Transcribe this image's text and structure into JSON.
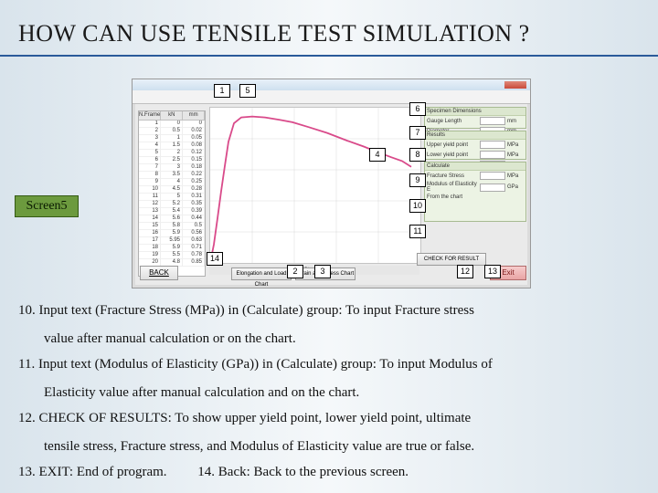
{
  "title": "HOW CAN USE TENSILE TEST SIMULATION ?",
  "screen_label": "Screen5",
  "callouts": {
    "1": "1",
    "2": "2",
    "3": "3",
    "4": "4",
    "5": "5",
    "6": "6",
    "7": "7",
    "8": "8",
    "9": "9",
    "10": "10",
    "11": "11",
    "12": "12",
    "13": "13",
    "14": "14"
  },
  "screenshot": {
    "table": {
      "headers": [
        "N.Frame",
        "kN",
        "mm"
      ],
      "rows": [
        [
          1,
          0,
          0
        ],
        [
          2,
          0.5,
          0.02
        ],
        [
          3,
          1,
          0.05
        ],
        [
          4,
          1.5,
          0.08
        ],
        [
          5,
          2,
          0.12
        ],
        [
          6,
          2.5,
          0.15
        ],
        [
          7,
          3,
          0.18
        ],
        [
          8,
          3.5,
          0.22
        ],
        [
          9,
          4,
          0.25
        ],
        [
          10,
          4.5,
          0.28
        ],
        [
          11,
          5,
          0.31
        ],
        [
          12,
          5.2,
          0.35
        ],
        [
          13,
          5.4,
          0.39
        ],
        [
          14,
          5.6,
          0.44
        ],
        [
          15,
          5.8,
          0.5
        ],
        [
          16,
          5.9,
          0.56
        ],
        [
          17,
          5.95,
          0.63
        ],
        [
          18,
          5.9,
          0.71
        ],
        [
          19,
          5.5,
          0.78
        ],
        [
          20,
          4.8,
          0.85
        ]
      ]
    },
    "chart": {
      "type": "line",
      "xlabel": "Strain %",
      "ylabel": "Stress MPa",
      "grid_color": "#d9d9d9",
      "background_color": "#ffffff",
      "series": [
        {
          "color": "#d94a8a",
          "points": [
            [
              0,
              0
            ],
            [
              4,
              38
            ],
            [
              8,
              92
            ],
            [
              12,
              148
            ],
            [
              16,
              200
            ],
            [
              20,
              250
            ],
            [
              26,
              288
            ],
            [
              34,
              300
            ],
            [
              46,
              302
            ],
            [
              60,
              300
            ],
            [
              76,
              295
            ],
            [
              90,
              290
            ],
            [
              108,
              280
            ],
            [
              128,
              268
            ],
            [
              150,
              252
            ],
            [
              168,
              240
            ],
            [
              184,
              228
            ],
            [
              198,
              218
            ],
            [
              210,
              210
            ],
            [
              220,
              198
            ]
          ]
        }
      ],
      "xlim": [
        0,
        230
      ],
      "ylim": [
        0,
        320
      ]
    },
    "right_panel_1": {
      "title": "Specimen Dimensions",
      "rows": [
        [
          "Gauge Length",
          "mm"
        ],
        [
          "Diameter",
          "mm"
        ]
      ]
    },
    "right_panel_2": {
      "title": "Results",
      "rows": [
        [
          "Upper yield point",
          "MPa"
        ],
        [
          "Lower yield point",
          "MPa"
        ],
        [
          "Ultimate Stress",
          "MPa"
        ]
      ]
    },
    "right_panel_3": {
      "title": "Calculate",
      "rows": [
        [
          "Fracture Stress",
          "MPa"
        ],
        [
          "Modulus of Elasticity E",
          "GPa"
        ],
        [
          "From the chart",
          ""
        ]
      ]
    },
    "back_label": "BACK",
    "exit_label": "Exit",
    "check_label": "CHECK FOR RESULT",
    "bot1_label": "Elongation and Load Chart",
    "bot2_label": "Strain and Stress Chart",
    "chart_caption": "Strain %"
  },
  "list_item_10_a": "10.  Input text (Fracture Stress (MPa)) in (Calculate) group: To input Fracture stress",
  "list_item_10_b": "value after manual calculation or on the chart.",
  "list_item_11_a": "11.  Input text (Modulus of Elasticity (GPa)) in (Calculate) group: To input Modulus of",
  "list_item_11_b": "Elasticity value after manual calculation and on the chart.",
  "list_item_12_a": "12.  CHECK OF RESULTS: To show upper yield point, lower yield point, ultimate",
  "list_item_12_b": "tensile stress, Fracture stress, and Modulus of Elasticity value are true or false.",
  "list_item_13": "13.  EXIT: End of program.",
  "list_item_14": "14. Back: Back to the previous screen."
}
